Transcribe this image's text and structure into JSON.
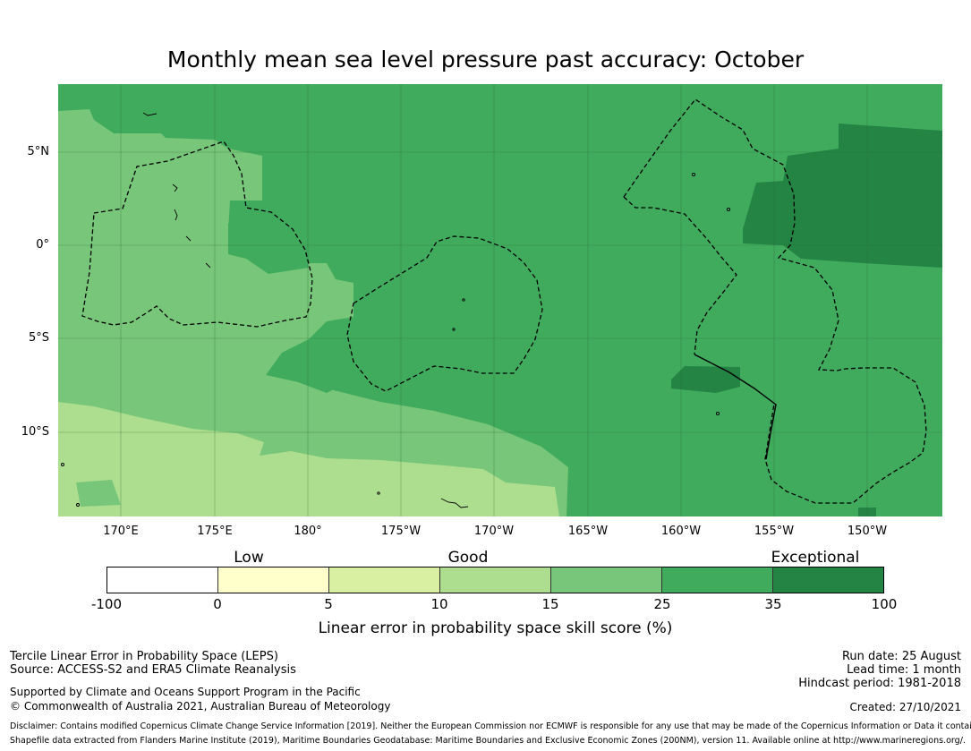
{
  "title": "Monthly mean sea level pressure past accuracy: October",
  "map": {
    "lat_labels": [
      {
        "text": "5°N",
        "lat": 5
      },
      {
        "text": "0°",
        "lat": 0
      },
      {
        "text": "5°S",
        "lat": -5
      },
      {
        "text": "10°S",
        "lat": -10
      }
    ],
    "lon_labels": [
      {
        "text": "170°E",
        "lon": 170
      },
      {
        "text": "175°E",
        "lon": 175
      },
      {
        "text": "180°",
        "lon": 180
      },
      {
        "text": "175°W",
        "lon": 185
      },
      {
        "text": "170°W",
        "lon": 190
      },
      {
        "text": "165°W",
        "lon": 195
      },
      {
        "text": "160°W",
        "lon": 200
      },
      {
        "text": "155°W",
        "lon": 205
      },
      {
        "text": "150°W",
        "lon": 210
      }
    ],
    "extent": {
      "lon_min": 166.7,
      "lon_max": 214.1,
      "lat_min": -14.5,
      "lat_max": 8.6
    }
  },
  "colorbar": {
    "categories": [
      "Low",
      "Good",
      "Exceptional"
    ],
    "ticks": [
      "-100",
      "0",
      "5",
      "10",
      "15",
      "25",
      "35",
      "100"
    ],
    "colors": [
      "#ffffff",
      "#ffffcc",
      "#d9f0a3",
      "#addd8e",
      "#78c679",
      "#41ab5d",
      "#238443"
    ],
    "label": "Linear error in probability space skill score (%)"
  },
  "footer": {
    "left_line1": "Tercile Linear Error in Probability Space (LEPS)",
    "left_line2": "Source: ACCESS-S2 and ERA5 Climate Reanalysis",
    "left_line3": "Supported by Climate and Oceans Support Program in the Pacific",
    "left_line4": "© Commonwealth of Australia 2021, Australian Bureau of Meteorology",
    "right_line1": "Run date: 25 August",
    "right_line2": "Lead time: 1 month",
    "right_line3": "Hindcast period: 1981-2018",
    "right_line4": "Created: 27/10/2021",
    "disclaimer1": "Disclaimer: Contains modified Copernicus Climate Change Service Information [2019]. Neither the European Commission nor ECMWF is responsible for any use that may be made of the Copernicus Information or Data it contains.",
    "disclaimer2": "Shapefile data extracted from Flanders Marine Institute (2019), Maritime Boundaries Geodatabase: Maritime Boundaries and Exclusive Economic Zones (200NM), version 11. Available online at http://www.marineregions.org/."
  }
}
